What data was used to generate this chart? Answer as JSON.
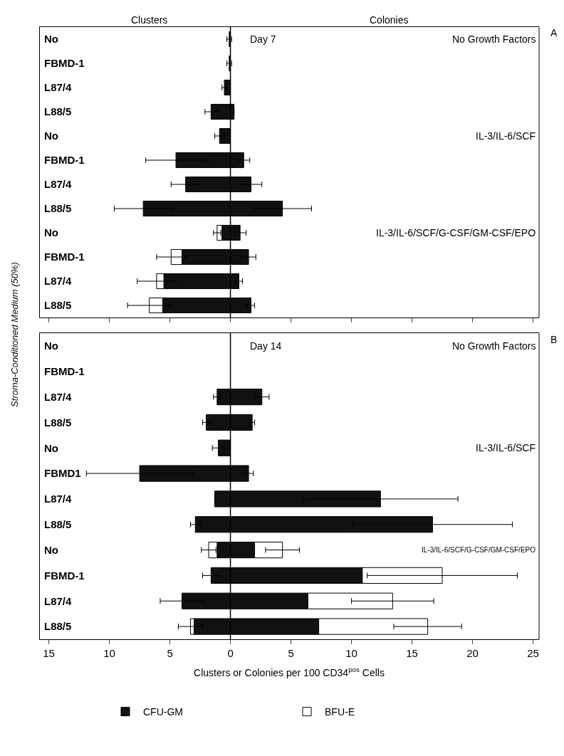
{
  "chart_data": [
    {
      "type": "bar",
      "orientation": "horizontal",
      "stacked": true,
      "ylabel": "Stroma-Conditioned Medium (50%)",
      "annotations": [
        "Clusters",
        "Colonies",
        "Day 7",
        "No Growth Factors",
        "IL-3/IL-6/SCF",
        "IL-3/IL-6/SCF/G-CSF/GM-CSF/EPO",
        "A"
      ],
      "categories": [
        "No",
        "FBMD-1",
        "L87/4",
        "L88/5",
        "No",
        "FBMD-1",
        "L87/4",
        "L88/5",
        "No",
        "FBMD-1",
        "L87/4",
        "L88/5"
      ],
      "series": [
        {
          "color": "#111111",
          "values": [
            -0.1,
            -0.1,
            -0.5,
            -1.6,
            -0.9,
            -4.5,
            -3.7,
            -7.2,
            -0.7,
            -4.0,
            -5.5,
            -5.6
          ],
          "errors": [
            0.2,
            0.2,
            0.2,
            0.5,
            0.4,
            2.5,
            1.2,
            2.4,
            null,
            null,
            null,
            null
          ]
        },
        {
          "color": "#ffffff",
          "values": [
            null,
            null,
            null,
            null,
            null,
            null,
            null,
            null,
            -0.4,
            -0.9,
            -0.6,
            -1.1
          ],
          "errors": [
            null,
            null,
            null,
            null,
            null,
            null,
            null,
            null,
            0.3,
            1.2,
            1.6,
            1.8
          ]
        },
        {
          "color": "#111111",
          "values": [
            null,
            null,
            null,
            0.3,
            null,
            1.1,
            1.7,
            4.3,
            0.8,
            1.5,
            0.7,
            1.7
          ],
          "errors": [
            null,
            null,
            null,
            null,
            null,
            0.5,
            0.9,
            2.4,
            0.5,
            0.6,
            0.3,
            0.3
          ]
        }
      ],
      "xlim": [
        -15.8,
        25.5
      ],
      "xticks": [
        {
          "value": -15,
          "label": null
        },
        {
          "value": -10,
          "label": null
        },
        {
          "value": -5,
          "label": null
        },
        {
          "value": 0,
          "label": null
        },
        {
          "value": 5,
          "label": null
        },
        {
          "value": 10,
          "label": null
        },
        {
          "value": 15,
          "label": null
        },
        {
          "value": 20,
          "label": null
        },
        {
          "value": 25,
          "label": null
        }
      ],
      "tick_labels": "y",
      "ref_lines": [
        {
          "axis": "x",
          "value": 0
        }
      ],
      "grid": false,
      "legend": false
    },
    {
      "type": "bar",
      "orientation": "horizontal",
      "stacked": true,
      "xlabel": "Clusters or Colonies per 100 CD34$^{pos}$ Cells",
      "annotations": [
        "Day 14",
        "No Growth Factors",
        "IL-3/IL-6/SCF",
        "IL-3/IL-6/SCF/G-CSF/GM-CSF/EPO",
        "B"
      ],
      "categories": [
        "No",
        "FBMD-1",
        "L87/4",
        "L88/5",
        "No",
        "FBMD1",
        "L87/4",
        "L88/5",
        "No",
        "FBMD-1",
        "L87/4",
        "L88/5"
      ],
      "series": [
        {
          "color": "#111111",
          "values": [
            null,
            null,
            -1.1,
            -2.0,
            -1.0,
            -7.5,
            -1.3,
            -2.9,
            -1.1,
            -1.6,
            -4.0,
            -3.0
          ],
          "errors": [
            null,
            null,
            0.3,
            0.3,
            0.5,
            4.4,
            null,
            0.4,
            null,
            0.7,
            1.8,
            null
          ]
        },
        {
          "color": "#ffffff",
          "values": [
            null,
            null,
            null,
            null,
            null,
            null,
            null,
            null,
            -0.7,
            null,
            null,
            -0.3
          ],
          "errors": [
            null,
            null,
            null,
            null,
            null,
            null,
            null,
            null,
            0.6,
            null,
            null,
            1.0
          ]
        },
        {
          "name": "CFU-GM",
          "color": "#111111",
          "values": [
            null,
            null,
            2.6,
            1.8,
            null,
            1.5,
            12.4,
            16.7,
            2.0,
            10.9,
            6.4,
            7.3
          ],
          "errors": [
            null,
            null,
            0.6,
            0.2,
            null,
            0.4,
            6.4,
            6.6,
            null,
            null,
            null,
            null
          ]
        },
        {
          "name": "BFU-E",
          "color": "#ffffff",
          "values": [
            null,
            null,
            null,
            null,
            null,
            null,
            null,
            null,
            2.3,
            6.6,
            7.0,
            9.0
          ],
          "errors": [
            null,
            null,
            null,
            null,
            null,
            null,
            null,
            null,
            1.4,
            6.2,
            3.4,
            2.8
          ]
        }
      ],
      "xlim": [
        -15.8,
        25.5
      ],
      "xticks": [
        {
          "value": -15,
          "label": "15"
        },
        {
          "value": -10,
          "label": "10"
        },
        {
          "value": -5,
          "label": "5"
        },
        0,
        5,
        10,
        15,
        20,
        25
      ],
      "ref_lines": [
        {
          "axis": "x",
          "value": 0
        }
      ],
      "grid": false,
      "legend": "bottom"
    }
  ]
}
